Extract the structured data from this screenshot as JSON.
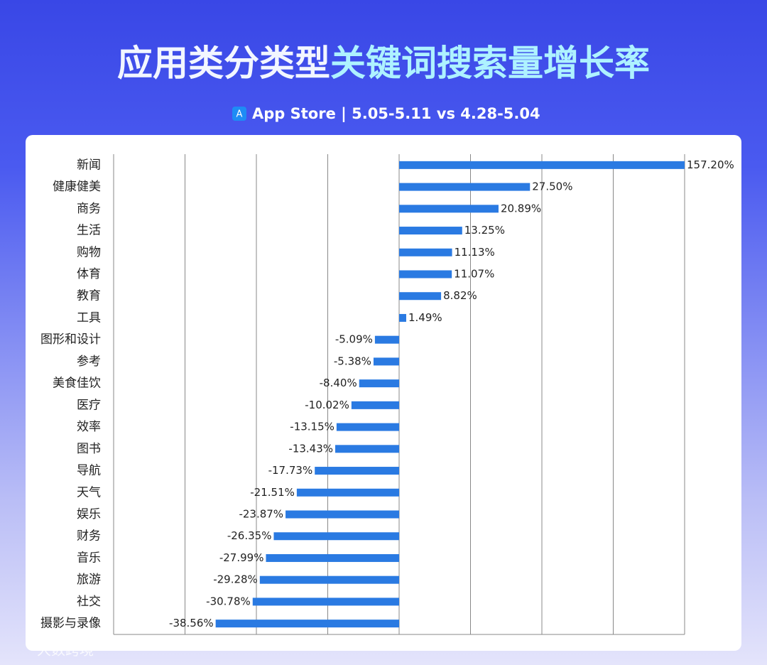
{
  "chart_data": {
    "type": "hbar",
    "title": [
      "应用类分类型",
      "关键词搜索量增长率"
    ],
    "subtitle": "App Store | 5.05-5.11 vs 4.28-5.04",
    "watermark": "大数跨境",
    "categories": [
      "新闻",
      "健康健美",
      "商务",
      "生活",
      "购物",
      "体育",
      "教育",
      "工具",
      "图形和设计",
      "参考",
      "美食佳饮",
      "医疗",
      "效率",
      "图书",
      "导航",
      "天气",
      "娱乐",
      "财务",
      "音乐",
      "旅游",
      "社交",
      "摄影与录像"
    ],
    "values": [
      157.2,
      27.5,
      20.89,
      13.25,
      11.13,
      11.07,
      8.82,
      1.49,
      -5.09,
      -5.38,
      -8.4,
      -10.02,
      -13.15,
      -13.43,
      -17.73,
      -21.51,
      -23.87,
      -26.35,
      -27.99,
      -29.28,
      -30.78,
      -38.56
    ],
    "value_labels": [
      "157.20%",
      "27.50%",
      "20.89%",
      "13.25%",
      "11.13%",
      "11.07%",
      "8.82%",
      "1.49%",
      "-5.09%",
      "-5.38%",
      "-8.40%",
      "-10.02%",
      "-13.15%",
      "-13.43%",
      "-17.73%",
      "-21.51%",
      "-23.87%",
      "-26.35%",
      "-27.99%",
      "-29.28%",
      "-30.78%",
      "-38.56%"
    ],
    "color": "#2a7ae2",
    "xlim": [
      -60,
      60
    ],
    "xticks": [
      -60,
      -45,
      -30,
      -15,
      0,
      15,
      30,
      45,
      60
    ],
    "grid": true
  }
}
